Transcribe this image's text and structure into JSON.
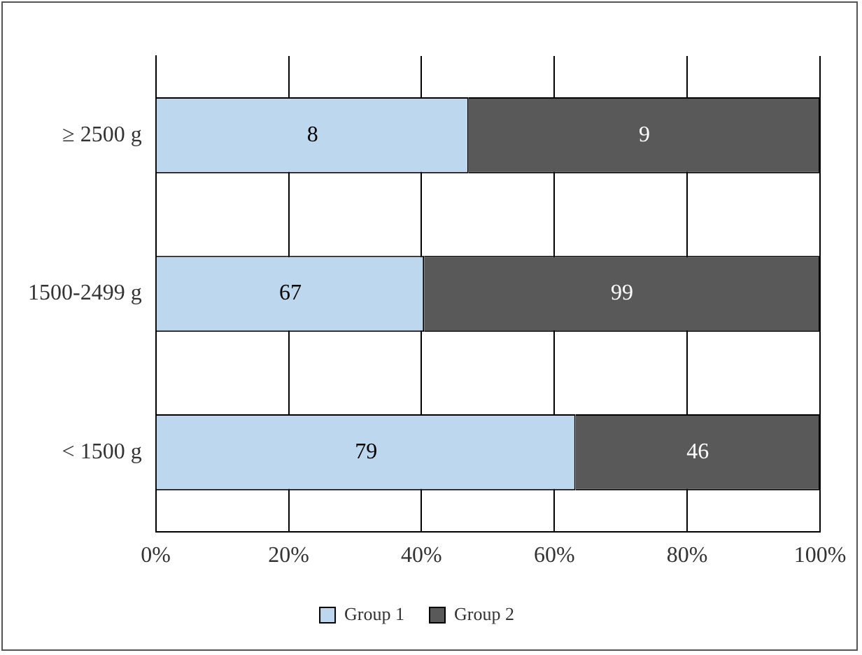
{
  "chart_data": {
    "type": "bar",
    "orientation": "horizontal",
    "stacked": true,
    "categories": [
      "≥ 2500 g",
      "1500-2499 g",
      "< 1500 g"
    ],
    "series": [
      {
        "name": "Group 1",
        "color": "#bdd7ee",
        "values": [
          47.1,
          40.4,
          63.2
        ]
      },
      {
        "name": "Group 2",
        "color": "#595959",
        "values": [
          52.9,
          59.6,
          36.8
        ]
      }
    ],
    "annotations": [
      "8",
      "9",
      "67",
      "99",
      "79",
      "46"
    ],
    "xlim": [
      0,
      100
    ],
    "xticks": [
      {
        "value": 0,
        "label": "0%"
      },
      {
        "value": 20,
        "label": "20%"
      },
      {
        "value": 40,
        "label": "40%"
      },
      {
        "value": 60,
        "label": "60%"
      },
      {
        "value": 80,
        "label": "80%"
      },
      {
        "value": 100,
        "label": "100%"
      }
    ],
    "grid": "x",
    "legend": "bottom"
  }
}
